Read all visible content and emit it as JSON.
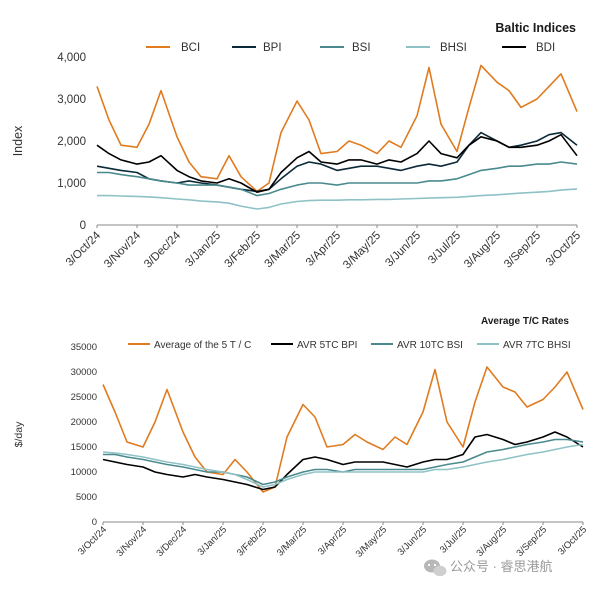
{
  "chart_data": [
    {
      "type": "line",
      "title": "Baltic Indices",
      "xlabel": "",
      "ylabel": "Index",
      "ylim": [
        0,
        4000
      ],
      "yticks": [
        0,
        1000,
        2000,
        3000,
        4000
      ],
      "ytick_labels": [
        "0",
        "1,000",
        "2,000",
        "3,000",
        "4,000"
      ],
      "grid": false,
      "legend_position": "top",
      "categories": [
        "3/Oct/24",
        "3/Nov/24",
        "3/Dec/24",
        "3/Jan/25",
        "3/Feb/25",
        "3/Mar/25",
        "3/Apr/25",
        "3/May/25",
        "3/Jun/25",
        "3/Jul/25",
        "3/Aug/25",
        "3/Sep/25",
        "3/Oct/25"
      ],
      "series": [
        {
          "name": "BCI",
          "color": "#e07b1f",
          "x": [
            0,
            0.3,
            0.6,
            1,
            1.3,
            1.6,
            2,
            2.3,
            2.6,
            3,
            3.3,
            3.6,
            4,
            4.3,
            4.6,
            5,
            5.3,
            5.6,
            6,
            6.3,
            6.6,
            7,
            7.3,
            7.6,
            8,
            8.3,
            8.6,
            9,
            9.3,
            9.6,
            10,
            10.3,
            10.6,
            11,
            11.3,
            11.6,
            12
          ],
          "values": [
            3300,
            2500,
            1900,
            1850,
            2400,
            3200,
            2100,
            1500,
            1150,
            1100,
            1650,
            1150,
            800,
            1000,
            2200,
            2950,
            2500,
            1700,
            1750,
            2000,
            1900,
            1700,
            2000,
            1850,
            2600,
            3750,
            2400,
            1750,
            2800,
            3800,
            3400,
            3200,
            2800,
            3000,
            3300,
            3600,
            2700
          ]
        },
        {
          "name": "BPI",
          "color": "#0d2a3a",
          "x": [
            0,
            0.3,
            0.6,
            1,
            1.3,
            1.6,
            2,
            2.3,
            2.6,
            3,
            3.3,
            3.6,
            4,
            4.3,
            4.6,
            5,
            5.3,
            5.6,
            6,
            6.3,
            6.6,
            7,
            7.3,
            7.6,
            8,
            8.3,
            8.6,
            9,
            9.3,
            9.6,
            10,
            10.3,
            10.6,
            11,
            11.3,
            11.6,
            12
          ],
          "values": [
            1400,
            1350,
            1300,
            1250,
            1100,
            1050,
            1000,
            1050,
            1000,
            950,
            900,
            850,
            800,
            850,
            1100,
            1400,
            1500,
            1450,
            1300,
            1350,
            1400,
            1400,
            1350,
            1300,
            1400,
            1450,
            1400,
            1500,
            1900,
            2200,
            2000,
            1850,
            1900,
            2000,
            2150,
            2200,
            1900
          ]
        },
        {
          "name": "BSI",
          "color": "#4a8a8e",
          "x": [
            0,
            0.3,
            0.6,
            1,
            1.3,
            1.6,
            2,
            2.3,
            2.6,
            3,
            3.3,
            3.6,
            4,
            4.3,
            4.6,
            5,
            5.3,
            5.6,
            6,
            6.3,
            6.6,
            7,
            7.3,
            7.6,
            8,
            8.3,
            8.6,
            9,
            9.3,
            9.6,
            10,
            10.3,
            10.6,
            11,
            11.3,
            11.6,
            12
          ],
          "values": [
            1250,
            1250,
            1200,
            1150,
            1100,
            1050,
            1000,
            950,
            950,
            950,
            900,
            850,
            700,
            750,
            850,
            950,
            1000,
            1000,
            950,
            1000,
            1000,
            1000,
            1000,
            1000,
            1000,
            1050,
            1050,
            1100,
            1200,
            1300,
            1350,
            1400,
            1400,
            1450,
            1450,
            1500,
            1450
          ]
        },
        {
          "name": "BHSI",
          "color": "#8fc2c6",
          "x": [
            0,
            0.3,
            0.6,
            1,
            1.3,
            1.6,
            2,
            2.3,
            2.6,
            3,
            3.3,
            3.6,
            4,
            4.3,
            4.6,
            5,
            5.3,
            5.6,
            6,
            6.3,
            6.6,
            7,
            7.3,
            7.6,
            8,
            8.3,
            8.6,
            9,
            9.3,
            9.6,
            10,
            10.3,
            10.6,
            11,
            11.3,
            11.6,
            12
          ],
          "values": [
            700,
            700,
            690,
            680,
            670,
            650,
            620,
            600,
            570,
            550,
            520,
            450,
            380,
            420,
            500,
            560,
            580,
            590,
            590,
            600,
            600,
            610,
            610,
            620,
            630,
            640,
            650,
            660,
            680,
            700,
            720,
            740,
            760,
            780,
            800,
            830,
            860
          ]
        },
        {
          "name": "BDI",
          "color": "#000000",
          "x": [
            0,
            0.3,
            0.6,
            1,
            1.3,
            1.6,
            2,
            2.3,
            2.6,
            3,
            3.3,
            3.6,
            4,
            4.3,
            4.6,
            5,
            5.3,
            5.6,
            6,
            6.3,
            6.6,
            7,
            7.3,
            7.6,
            8,
            8.3,
            8.6,
            9,
            9.3,
            9.6,
            10,
            10.3,
            10.6,
            11,
            11.3,
            11.6,
            12
          ],
          "values": [
            1900,
            1700,
            1550,
            1450,
            1500,
            1650,
            1300,
            1150,
            1050,
            1000,
            1100,
            1000,
            780,
            850,
            1250,
            1600,
            1750,
            1500,
            1450,
            1550,
            1550,
            1450,
            1550,
            1500,
            1700,
            2000,
            1700,
            1600,
            1900,
            2100,
            2000,
            1850,
            1850,
            1900,
            2000,
            2150,
            1650
          ]
        }
      ]
    },
    {
      "type": "line",
      "title": "Average T/C Rates",
      "xlabel": "",
      "ylabel": "$/day",
      "ylim": [
        0,
        35000
      ],
      "yticks": [
        0,
        5000,
        10000,
        15000,
        20000,
        25000,
        30000,
        35000
      ],
      "ytick_labels": [
        "0",
        "5000",
        "10000",
        "15000",
        "20000",
        "25000",
        "30000",
        "35000"
      ],
      "grid": false,
      "legend_position": "top",
      "categories": [
        "3/Oct/24",
        "3/Nov/24",
        "3/Dec/24",
        "3/Jan/25",
        "3/Feb/25",
        "3/Mar/25",
        "3/Apr/25",
        "3/May/25",
        "3/Jun/25",
        "3/Jul/25",
        "3/Aug/25",
        "3/Sep/25",
        "3/Oct/25"
      ],
      "series": [
        {
          "name": "Average of the 5 T / C",
          "color": "#e07b1f",
          "x": [
            0,
            0.3,
            0.6,
            1,
            1.3,
            1.6,
            2,
            2.3,
            2.6,
            3,
            3.3,
            3.6,
            4,
            4.3,
            4.6,
            5,
            5.3,
            5.6,
            6,
            6.3,
            6.6,
            7,
            7.3,
            7.6,
            8,
            8.3,
            8.6,
            9,
            9.3,
            9.6,
            10,
            10.3,
            10.6,
            11,
            11.3,
            11.6,
            12
          ],
          "values": [
            27500,
            22000,
            16000,
            15000,
            20000,
            26500,
            18000,
            13000,
            10000,
            9500,
            12500,
            10000,
            6000,
            7000,
            17000,
            23500,
            21000,
            15000,
            15500,
            17500,
            16000,
            14500,
            17000,
            15500,
            22000,
            30500,
            20000,
            15000,
            24000,
            31000,
            27000,
            26000,
            23000,
            24500,
            27000,
            30000,
            22500
          ]
        },
        {
          "name": "AVR 5TC BPI",
          "color": "#000000",
          "x": [
            0,
            0.3,
            0.6,
            1,
            1.3,
            1.6,
            2,
            2.3,
            2.6,
            3,
            3.3,
            3.6,
            4,
            4.3,
            4.6,
            5,
            5.3,
            5.6,
            6,
            6.3,
            6.6,
            7,
            7.3,
            7.6,
            8,
            8.3,
            8.6,
            9,
            9.3,
            9.6,
            10,
            10.3,
            10.6,
            11,
            11.3,
            11.6,
            12
          ],
          "values": [
            12500,
            12000,
            11500,
            11000,
            10000,
            9500,
            9000,
            9500,
            9000,
            8500,
            8000,
            7500,
            6500,
            7000,
            9500,
            12500,
            13000,
            12500,
            11500,
            12000,
            12000,
            12000,
            11500,
            11000,
            12000,
            12500,
            12500,
            13500,
            17000,
            17500,
            16500,
            15500,
            16000,
            17000,
            18000,
            17000,
            15000
          ]
        },
        {
          "name": "AVR 10TC BSI",
          "color": "#4a8a8e",
          "x": [
            0,
            0.3,
            0.6,
            1,
            1.3,
            1.6,
            2,
            2.3,
            2.6,
            3,
            3.3,
            3.6,
            4,
            4.3,
            4.6,
            5,
            5.3,
            5.6,
            6,
            6.3,
            6.6,
            7,
            7.3,
            7.6,
            8,
            8.3,
            8.6,
            9,
            9.3,
            9.6,
            10,
            10.3,
            10.6,
            11,
            11.3,
            11.6,
            12
          ],
          "values": [
            13500,
            13500,
            13000,
            12500,
            12000,
            11500,
            11000,
            10500,
            10000,
            10000,
            9500,
            9000,
            7500,
            8000,
            9000,
            10000,
            10500,
            10500,
            10000,
            10500,
            10500,
            10500,
            10500,
            10500,
            10500,
            11000,
            11500,
            12000,
            13000,
            14000,
            14500,
            15000,
            15500,
            16000,
            16500,
            16500,
            16000
          ]
        },
        {
          "name": "AVR 7TC BHSI",
          "color": "#8fc2c6",
          "x": [
            0,
            0.3,
            0.6,
            1,
            1.3,
            1.6,
            2,
            2.3,
            2.6,
            3,
            3.3,
            3.6,
            4,
            4.3,
            4.6,
            5,
            5.3,
            5.6,
            6,
            6.3,
            6.6,
            7,
            7.3,
            7.6,
            8,
            8.3,
            8.6,
            9,
            9.3,
            9.6,
            10,
            10.3,
            10.6,
            11,
            11.3,
            11.6,
            12
          ],
          "values": [
            14000,
            13800,
            13500,
            13000,
            12500,
            12000,
            11500,
            11000,
            10500,
            10000,
            9500,
            8500,
            7000,
            7500,
            8500,
            9500,
            10000,
            10000,
            10000,
            10000,
            10000,
            10000,
            10000,
            10000,
            10000,
            10500,
            10500,
            11000,
            11500,
            12000,
            12500,
            13000,
            13500,
            14000,
            14500,
            15000,
            15500
          ]
        }
      ]
    }
  ],
  "watermark": {
    "text": "公众号 · 睿思港航",
    "icon": "wechat-icon"
  }
}
